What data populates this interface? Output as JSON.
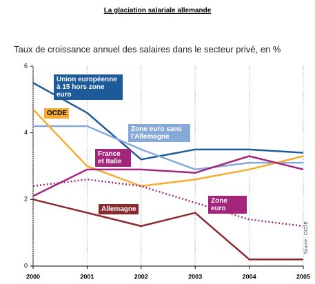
{
  "chart_data": {
    "type": "line",
    "title": "La glaciation salariale allemande",
    "subtitle": "Taux de croissance annuel des salaires dans le secteur privé, en %",
    "source": "Source : OCDE",
    "x": [
      2000,
      2001,
      2002,
      2003,
      2004,
      2005
    ],
    "xlim": [
      2000,
      2005
    ],
    "xticks": [
      2000,
      2001,
      2002,
      2003,
      2004,
      2005
    ],
    "ylim": [
      0,
      6
    ],
    "yticks": [
      0,
      2,
      4,
      6
    ],
    "series": [
      {
        "name": "Union européenne à 15 hors zone euro",
        "color": "#1d5a9a",
        "style": "solid",
        "values": [
          5.5,
          4.6,
          3.2,
          3.5,
          3.5,
          3.4
        ]
      },
      {
        "name": "Zone euro sans l'Allemagne",
        "color": "#86a9d8",
        "style": "solid",
        "values": [
          4.2,
          4.2,
          3.5,
          2.9,
          3.1,
          3.1
        ]
      },
      {
        "name": "OCDE",
        "color": "#f6ac2e",
        "style": "solid",
        "values": [
          4.7,
          3.0,
          2.4,
          2.6,
          2.9,
          3.3
        ]
      },
      {
        "name": "France et Italie",
        "color": "#a3267c",
        "style": "solid",
        "values": [
          2.1,
          2.9,
          2.9,
          2.8,
          3.3,
          2.9
        ]
      },
      {
        "name": "Zone euro",
        "color": "#a3267c",
        "style": "dotted",
        "values": [
          2.4,
          2.6,
          2.4,
          1.9,
          1.4,
          1.2
        ]
      },
      {
        "name": "Allemagne",
        "color": "#8a2a2e",
        "style": "solid",
        "values": [
          2.0,
          1.6,
          1.2,
          1.6,
          0.2,
          0.2
        ]
      }
    ]
  }
}
